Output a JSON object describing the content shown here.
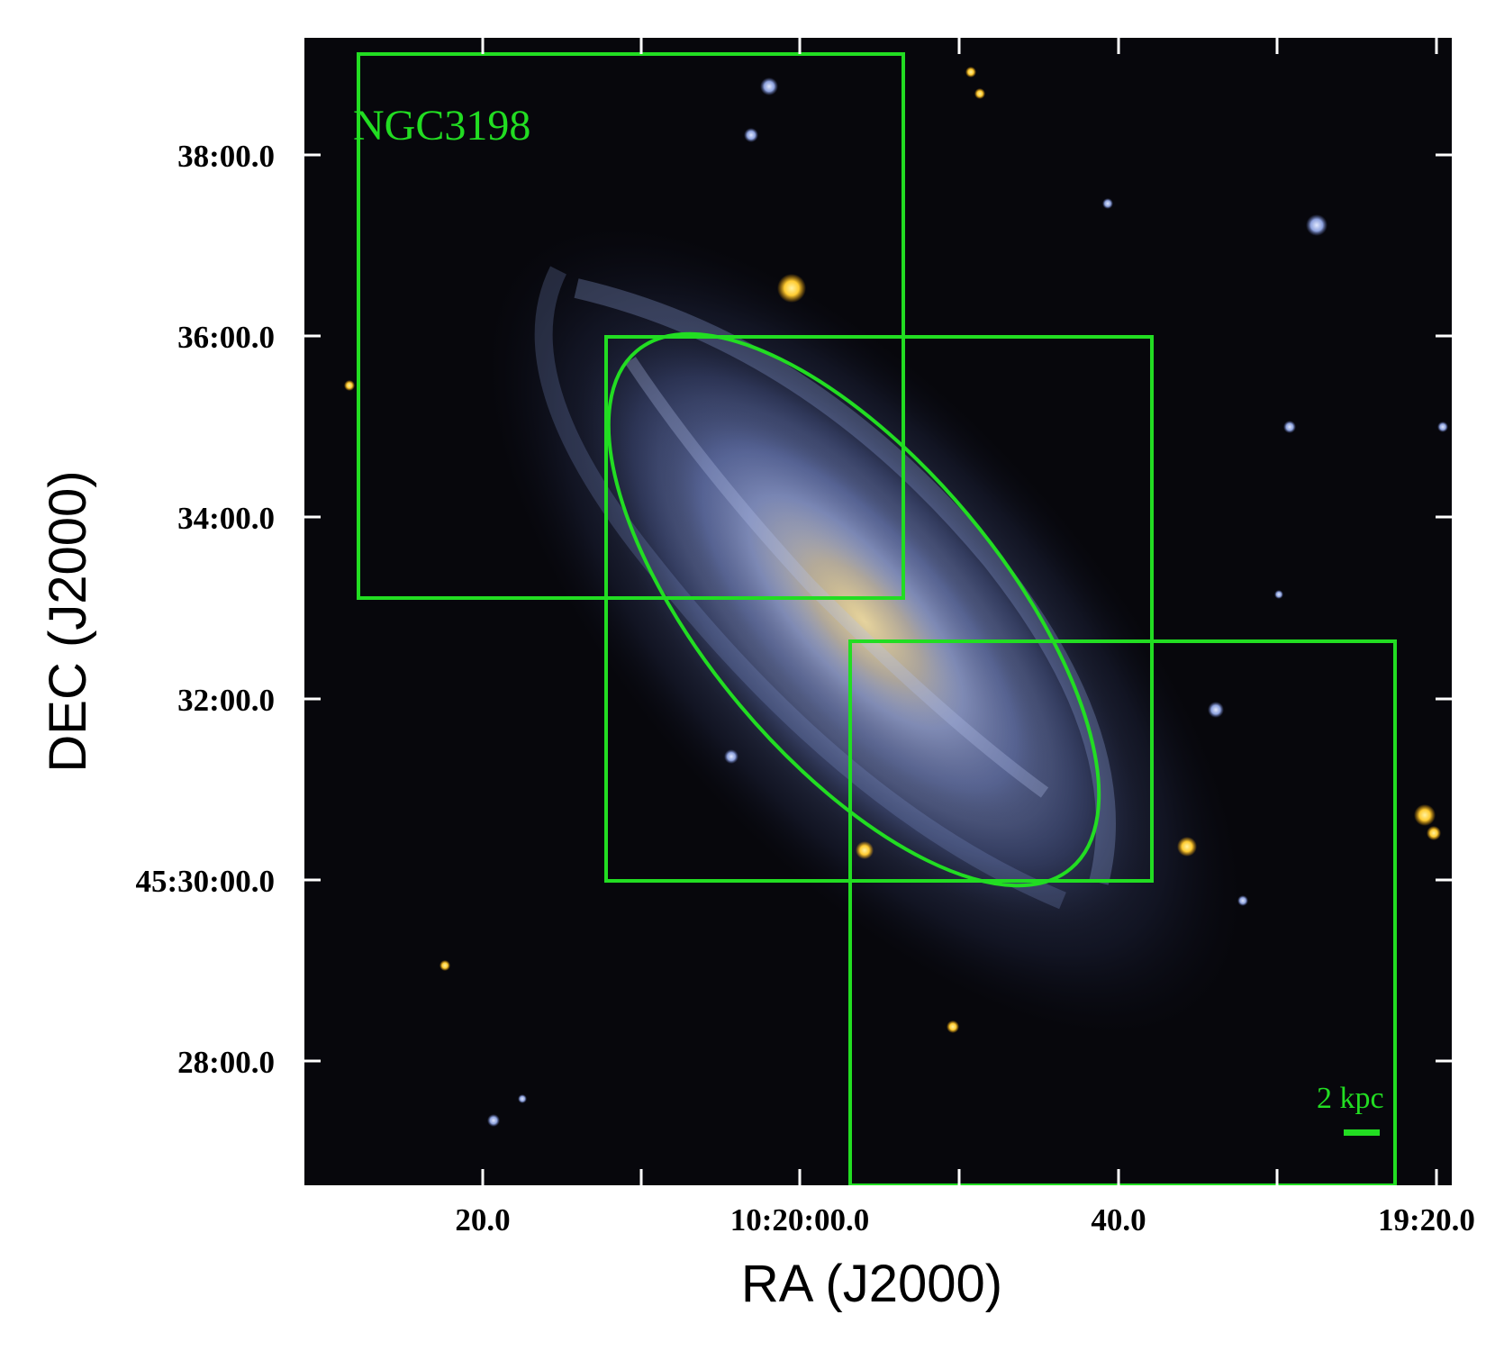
{
  "image": {
    "description_free": true,
    "object_label": "NGC3198",
    "scale_bar_label": "2 kpc"
  },
  "axes": {
    "xlabel": "RA (J2000)",
    "ylabel": "DEC (J2000)",
    "x_ticks": [
      "20.0",
      "10:20:00.0",
      "40.0",
      "19:20.0"
    ],
    "y_ticks": [
      "38:00.0",
      "36:00.0",
      "34:00.0",
      "32:00.0",
      "45:30:00.0",
      "28:00.0"
    ]
  },
  "colors": {
    "overlay": "#22dd22",
    "sky_background": "#07070c",
    "galaxy_blue": "#8fa4e6",
    "galaxy_core": "#c9b27a",
    "star_yellow": "#ffcc33"
  }
}
